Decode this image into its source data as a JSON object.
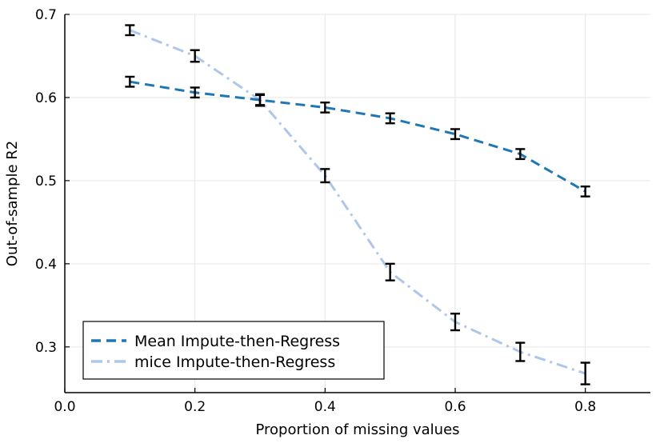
{
  "chart_data": {
    "type": "line",
    "title": "",
    "xlabel": "Proportion of missing values",
    "ylabel": "Out-of-sample R2",
    "xlim": [
      0.0,
      0.9
    ],
    "ylim": [
      0.245,
      0.7
    ],
    "xticks": [
      0.0,
      0.2,
      0.4,
      0.6,
      0.8
    ],
    "xtick_labels": [
      "0.0",
      "0.2",
      "0.4",
      "0.6",
      "0.8"
    ],
    "yticks": [
      0.3,
      0.4,
      0.5,
      0.6,
      0.7
    ],
    "ytick_labels": [
      "0.3",
      "0.4",
      "0.5",
      "0.6",
      "0.7"
    ],
    "grid": true,
    "legend_position": "bottom-left",
    "x": [
      0.1,
      0.2,
      0.3,
      0.4,
      0.5,
      0.6,
      0.7,
      0.8
    ],
    "series": [
      {
        "name": "Mean Impute-then-Regress",
        "color": "#1f77b4",
        "line_style": "dashed",
        "values": [
          0.619,
          0.606,
          0.597,
          0.588,
          0.575,
          0.556,
          0.532,
          0.487
        ],
        "error": [
          0.006,
          0.006,
          0.006,
          0.006,
          0.006,
          0.006,
          0.006,
          0.006
        ]
      },
      {
        "name": "mice Impute-then-Regress",
        "color": "#aec7e8",
        "line_style": "dashdot",
        "values": [
          0.681,
          0.65,
          0.597,
          0.506,
          0.39,
          0.33,
          0.294,
          0.268
        ],
        "error": [
          0.006,
          0.007,
          0.007,
          0.008,
          0.01,
          0.01,
          0.011,
          0.013
        ]
      }
    ]
  }
}
